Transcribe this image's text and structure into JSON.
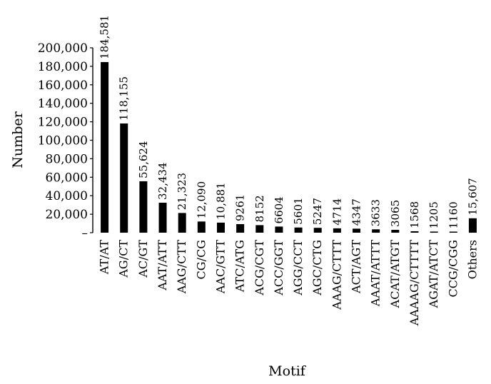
{
  "chart_data": {
    "type": "bar",
    "xlabel": "Motif",
    "ylabel": "Number",
    "ylim": [
      0,
      200000
    ],
    "yticks": [
      "200,000",
      "180,000",
      "160,000",
      "140,000",
      "120,000",
      "100,000",
      "80,000",
      "60,000",
      "40,000",
      "20,000",
      "–"
    ],
    "categories": [
      "AT/AT",
      "AG/CT",
      "AC/GT",
      "AAT/ATT",
      "AAG/CTT",
      "CG/CG",
      "AAC/GTT",
      "ATC/ATG",
      "ACG/CGT",
      "ACC/GGT",
      "AGG/CCT",
      "AGC/CTG",
      "AAAG/CTTT",
      "ACT/AGT",
      "AAAT/ATTT",
      "ACAT/ATGT",
      "AAAAG/CTTTT",
      "AGAT/ATCT",
      "CCG/CGG",
      "Others"
    ],
    "values": [
      184581,
      118155,
      55624,
      32434,
      21323,
      12090,
      10881,
      9261,
      8152,
      6604,
      5601,
      5247,
      4714,
      4347,
      3633,
      3065,
      1568,
      1205,
      1160,
      15607
    ],
    "value_labels": [
      "184,581",
      "118,155",
      "55,624",
      "32,434",
      "21,323",
      "12,090",
      "10,881",
      "9261",
      "8152",
      "6604",
      "5601",
      "5247",
      "4714",
      "4347",
      "3633",
      "3065",
      "1568",
      "1205",
      "1160",
      "15,607"
    ],
    "bar_color": "#000000",
    "grid": false,
    "legend": "none"
  }
}
